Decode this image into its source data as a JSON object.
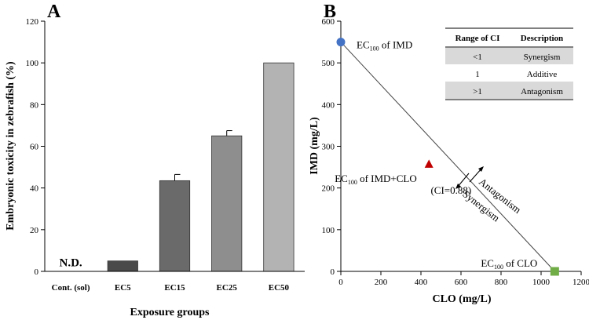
{
  "chart_data": [
    {
      "panel": "A",
      "type": "bar",
      "title": "",
      "xlabel": "Exposure groups",
      "ylabel": "Embryonic toxicity in zebrafish (%)",
      "ylim": [
        0,
        120
      ],
      "yticks": [
        0,
        20,
        40,
        60,
        80,
        100,
        120
      ],
      "categories": [
        "Cont. (sol)",
        "EC5",
        "EC15",
        "EC25",
        "EC50"
      ],
      "values": [
        0,
        5,
        43.5,
        65,
        100
      ],
      "errors": [
        0,
        0,
        3,
        2.5,
        0
      ],
      "colors": [
        "#4a4a4a",
        "#4a4a4a",
        "#6a6a6a",
        "#8e8e8e",
        "#b3b3b3"
      ],
      "annotations": [
        {
          "category": "Cont. (sol)",
          "text": "N.D."
        }
      ]
    },
    {
      "panel": "B",
      "type": "scatter",
      "title": "",
      "xlabel": "CLO (mg/L)",
      "ylabel": "IMD (mg/L)",
      "xlim": [
        0,
        1200
      ],
      "ylim": [
        0,
        600
      ],
      "xticks": [
        0,
        200,
        400,
        600,
        800,
        1000,
        1200
      ],
      "yticks": [
        0,
        100,
        200,
        300,
        400,
        500,
        600
      ],
      "isobole": {
        "x": [
          0,
          1068
        ],
        "y": [
          550,
          0
        ]
      },
      "points": [
        {
          "name": "EC100 of IMD",
          "x": 0,
          "y": 550,
          "marker": "circle",
          "color": "#4472c4",
          "label_base": "EC",
          "label_sub": "100",
          "label_rest": " of IMD"
        },
        {
          "name": "EC100 of CLO",
          "x": 1068,
          "y": 0,
          "marker": "square",
          "color": "#70ad47",
          "label_base": "EC",
          "label_sub": "100",
          "label_rest": " of CLO"
        },
        {
          "name": "EC100 of IMD+CLO",
          "x": 440,
          "y": 258,
          "marker": "triangle",
          "color": "#c00000",
          "label_base": "EC",
          "label_sub": "100",
          "label_rest": " of IMD+CLO",
          "label_line2": "(CI=0.88)"
        }
      ],
      "region_labels": [
        "Antagonism",
        "Synergism"
      ],
      "ci_table": {
        "headers": [
          "Range of CI",
          "Description"
        ],
        "rows": [
          [
            "<1",
            "Synergism"
          ],
          [
            "1",
            "Additive"
          ],
          [
            ">1",
            "Antagonism"
          ]
        ]
      }
    }
  ],
  "labels": {
    "panel_a": "A",
    "panel_b": "B"
  }
}
